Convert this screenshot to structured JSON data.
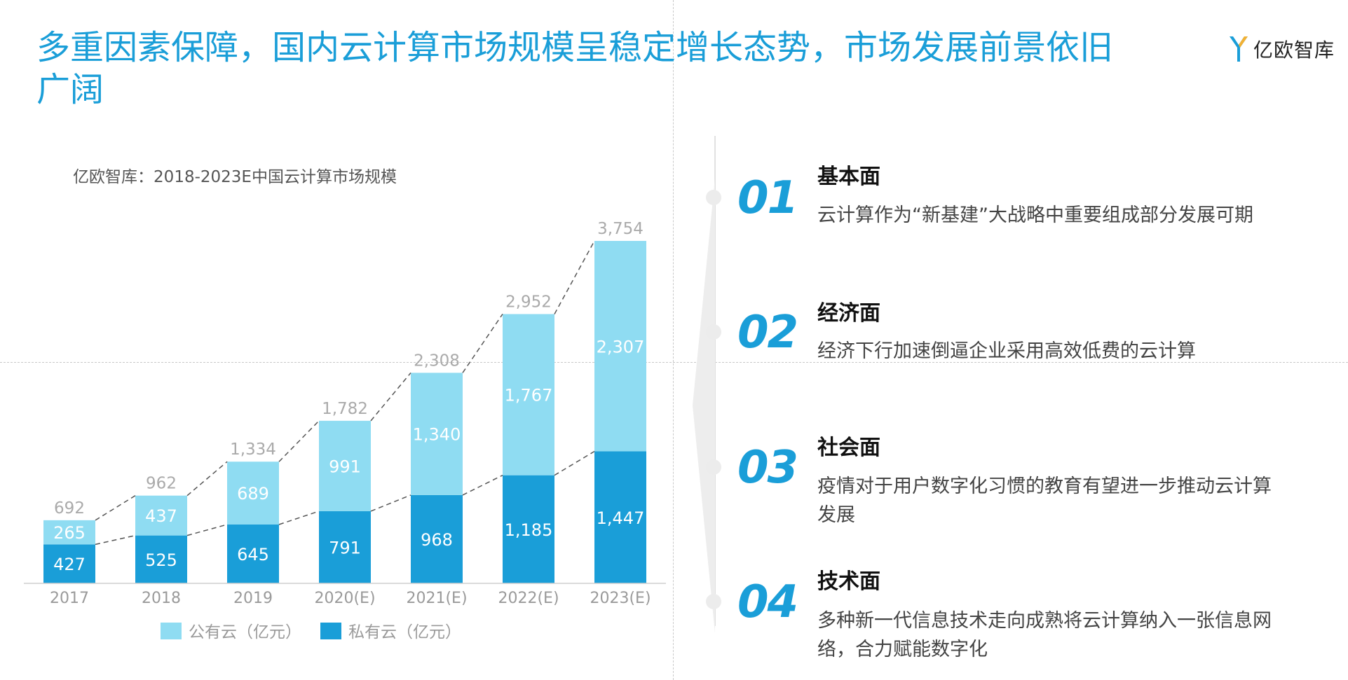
{
  "page": {
    "title": "多重因素保障，国内云计算市场规模呈稳定增长态势，市场发展前景依旧广阔",
    "logo_text": "亿欧智库",
    "accent_color": "#1a9ed8"
  },
  "chart_data": {
    "type": "bar",
    "stacked": true,
    "title": "亿欧智库：2018-2023E中国云计算市场规模",
    "categories": [
      "2017",
      "2018",
      "2019",
      "2020(E)",
      "2021(E)",
      "2022(E)",
      "2023(E)"
    ],
    "series": [
      {
        "name": "私有云（亿元）",
        "color": "#1a9ed8",
        "values": [
          427,
          525,
          645,
          791,
          968,
          1185,
          1447
        ]
      },
      {
        "name": "公有云（亿元）",
        "color": "#8fdcf2",
        "values": [
          265,
          437,
          689,
          991,
          1340,
          1767,
          2307
        ]
      }
    ],
    "totals": [
      692,
      962,
      1334,
      1782,
      2308,
      2952,
      3754
    ],
    "total_labels": [
      "692",
      "962",
      "1,334",
      "1,782",
      "2,308",
      "2,952",
      "3,754"
    ],
    "private_labels": [
      "427",
      "525",
      "645",
      "791",
      "968",
      "1,185",
      "1,447"
    ],
    "public_labels": [
      "265",
      "437",
      "689",
      "991",
      "1,340",
      "1,767",
      "2,307"
    ],
    "ylim": [
      0,
      3754
    ],
    "grid": false,
    "legend": "bottom",
    "legend_order": [
      "公有云（亿元）",
      "私有云（亿元）"
    ]
  },
  "factors": [
    {
      "num": "01",
      "title": "基本面",
      "desc": "云计算作为“新基建”大战略中重要组成部分发展可期"
    },
    {
      "num": "02",
      "title": "经济面",
      "desc": "经济下行加速倒逼企业采用高效低费的云计算"
    },
    {
      "num": "03",
      "title": "社会面",
      "desc": "疫情对于用户数字化习惯的教育有望进一步推动云计算发展"
    },
    {
      "num": "04",
      "title": "技术面",
      "desc": "多种新一代信息技术走向成熟将云计算纳入一张信息网络，合力赋能数字化"
    }
  ]
}
